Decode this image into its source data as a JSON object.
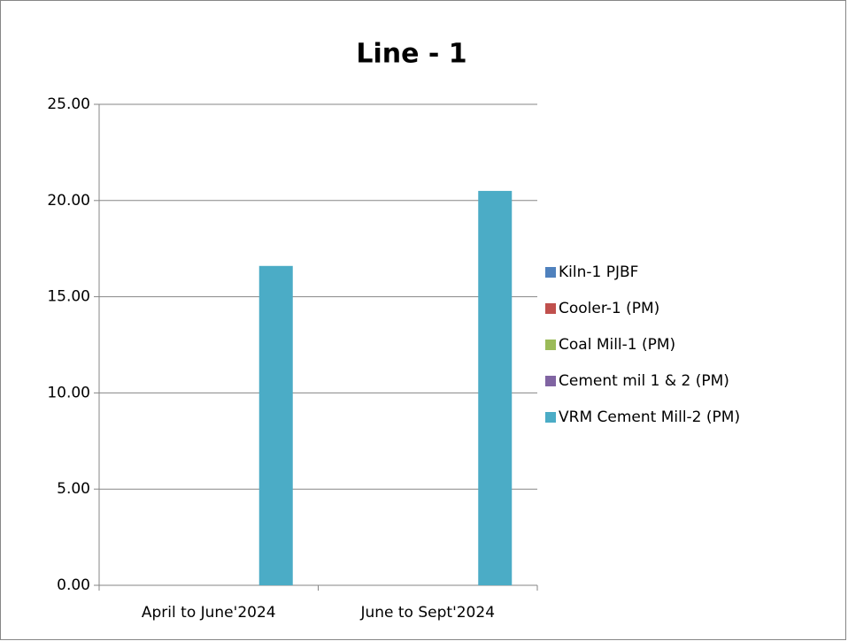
{
  "chart_data": {
    "type": "bar",
    "title": "Line - 1",
    "categories": [
      "April to June'2024",
      "June to Sept'2024"
    ],
    "series": [
      {
        "name": "Kiln-1 PJBF",
        "color": "#4f81bd",
        "values": [
          0,
          0
        ]
      },
      {
        "name": "Cooler-1 (PM)",
        "color": "#c0504d",
        "values": [
          0,
          0
        ]
      },
      {
        "name": "Coal Mill-1 (PM)",
        "color": "#9bbb59",
        "values": [
          0,
          0
        ]
      },
      {
        "name": "Cement mil 1 & 2 (PM)",
        "color": "#8064a2",
        "values": [
          0,
          0
        ]
      },
      {
        "name": "VRM Cement Mill-2 (PM)",
        "color": "#4bacc6",
        "values": [
          16.6,
          20.5
        ]
      }
    ],
    "ylim": [
      0,
      25
    ],
    "yticks": [
      {
        "value": 0,
        "label": "0.00"
      },
      {
        "value": 5,
        "label": "5.00"
      },
      {
        "value": 10,
        "label": "10.00"
      },
      {
        "value": 15,
        "label": "15.00"
      },
      {
        "value": 20,
        "label": "20.00"
      },
      {
        "value": 25,
        "label": "25.00"
      }
    ],
    "grid": true,
    "legend": "right"
  }
}
